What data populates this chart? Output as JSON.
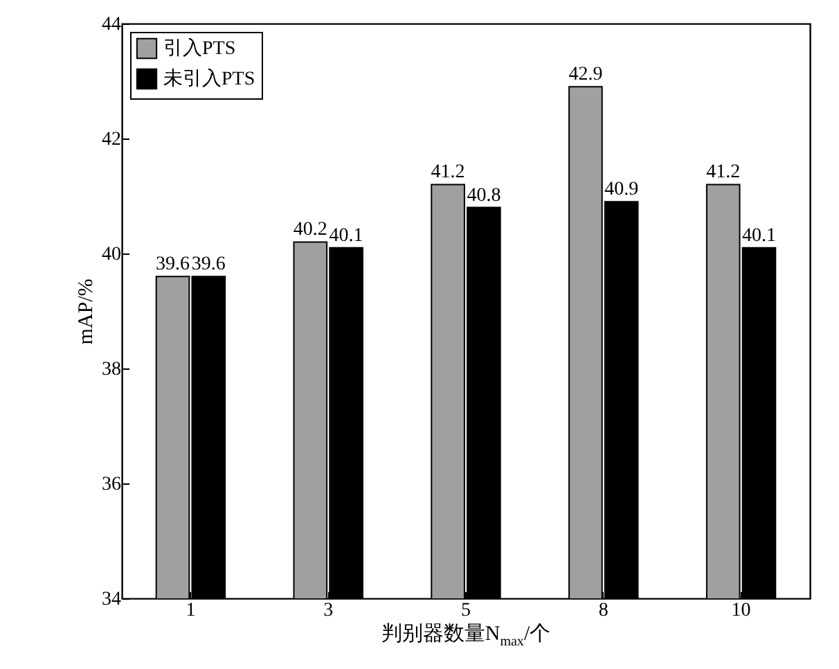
{
  "chart_data": {
    "type": "bar",
    "xlabel": "判别器数量N$_{max}$/个",
    "ylabel": "mAP/%",
    "categories": [
      "1",
      "3",
      "5",
      "8",
      "10"
    ],
    "series": [
      {
        "name": "引入PTS",
        "color": "#a0a0a0",
        "values": [
          39.6,
          40.2,
          41.2,
          42.9,
          41.2
        ]
      },
      {
        "name": "未引入PTS",
        "color": "#000000",
        "values": [
          39.6,
          40.1,
          40.8,
          40.9,
          40.1
        ]
      }
    ],
    "ylim": [
      34,
      44
    ],
    "yticks": [
      34,
      36,
      38,
      40,
      42,
      44
    ],
    "legend": "top left",
    "grid": false,
    "data_labels": true
  }
}
